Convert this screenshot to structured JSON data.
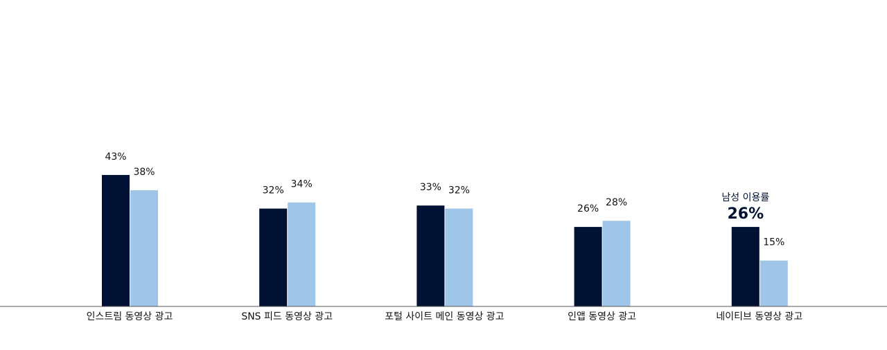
{
  "chart_data": {
    "type": "bar",
    "categories": [
      "인스트림 동영상 광고",
      "SNS 피드 동영상 광고",
      "포털 사이트 메인 동영상 광고",
      "인앱 동영상 광고",
      "네이티브 동영상 광고"
    ],
    "series": [
      {
        "color": "#001133",
        "values": [
          43,
          32,
          33,
          26,
          26
        ],
        "value_labels": [
          "43%",
          "32%",
          "33%",
          "26%",
          "26%"
        ]
      },
      {
        "color": "#9fc5e8",
        "values": [
          38,
          34,
          32,
          28,
          15
        ],
        "value_labels": [
          "38%",
          "34%",
          "32%",
          "28%",
          "15%"
        ]
      }
    ],
    "ylim": [
      0,
      100
    ],
    "annotation": {
      "text": "남성 이용률",
      "series": 0,
      "index": 4
    }
  }
}
